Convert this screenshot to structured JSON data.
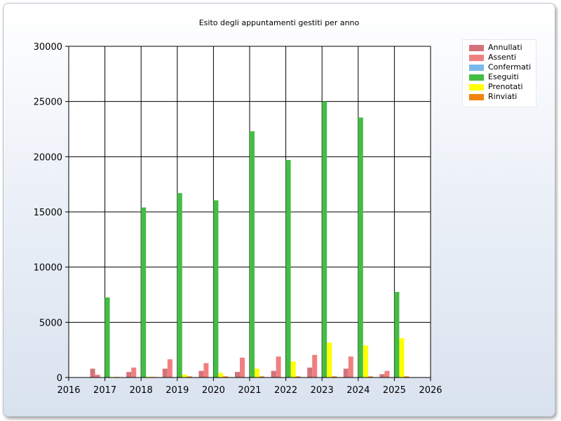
{
  "chart_data": {
    "type": "bar",
    "title": "Esito degli appuntamenti gestiti per anno",
    "xlabel": "",
    "ylabel": "",
    "categories": [
      "2017",
      "2018",
      "2019",
      "2020",
      "2021",
      "2022",
      "2023",
      "2024",
      "2025"
    ],
    "xlim": [
      2016,
      2026
    ],
    "x_ticks": [
      "2016",
      "2017",
      "2018",
      "2019",
      "2020",
      "2021",
      "2022",
      "2023",
      "2024",
      "2025",
      "2026"
    ],
    "ylim": [
      0,
      30000
    ],
    "y_ticks": [
      "0",
      "5000",
      "10000",
      "15000",
      "20000",
      "25000",
      "30000"
    ],
    "grid": true,
    "legend_position": "top-right",
    "series": [
      {
        "name": "Annullati",
        "color": "#d4727a",
        "values": [
          800,
          500,
          800,
          600,
          500,
          600,
          900,
          800,
          300
        ]
      },
      {
        "name": "Assenti",
        "color": "#f08080",
        "values": [
          250,
          900,
          1650,
          1300,
          1800,
          1900,
          2050,
          1900,
          600
        ]
      },
      {
        "name": "Confermati",
        "color": "#7ab8ea",
        "values": [
          0,
          0,
          0,
          0,
          0,
          0,
          0,
          0,
          0
        ]
      },
      {
        "name": "Eseguiti",
        "color": "#44bd44",
        "values": [
          7250,
          15400,
          16700,
          16050,
          22300,
          19700,
          25000,
          23550,
          7750
        ]
      },
      {
        "name": "Prenotati",
        "color": "#ffff00",
        "values": [
          50,
          80,
          250,
          400,
          800,
          1450,
          3150,
          2900,
          3550
        ]
      },
      {
        "name": "Rinviati",
        "color": "#f0840f",
        "values": [
          50,
          50,
          100,
          100,
          100,
          100,
          100,
          100,
          100
        ]
      }
    ]
  }
}
